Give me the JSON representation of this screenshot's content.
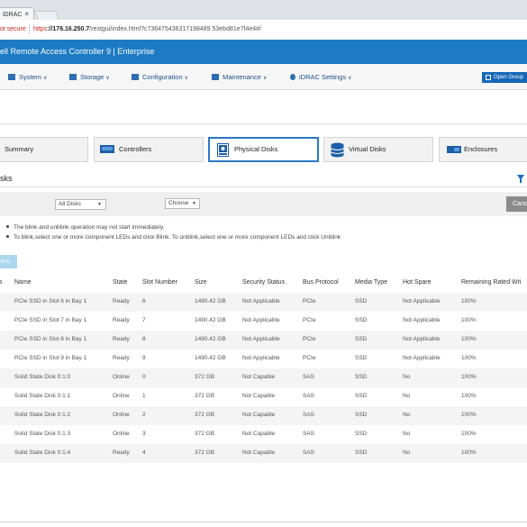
{
  "browser": {
    "tab_label": "iDRAC",
    "tab_close": "×",
    "security": "ot secure",
    "url_https": "https",
    "url_host": "://176.16.250.7",
    "url_path": "/restgui/index.html?c736475436317198489 53ebd81e7f4e4#/"
  },
  "header": {
    "title": "ell Remote Access Controller 9 | Enterprise",
    "open_group": "Open Group"
  },
  "nav": {
    "items": [
      {
        "label": "System"
      },
      {
        "label": "Storage"
      },
      {
        "label": "Configuration"
      },
      {
        "label": "Maintenance"
      },
      {
        "label": "iDRAC Settings"
      }
    ]
  },
  "component_tabs": [
    {
      "label": "Summary"
    },
    {
      "label": "Controllers"
    },
    {
      "label": "Physical Disks"
    },
    {
      "label": "Virtual Disks"
    },
    {
      "label": "Enclosures"
    }
  ],
  "section": {
    "title": "isks",
    "filter_select": "All Disks",
    "action_select": "Choose",
    "cancel_label": "Canc",
    "notes": [
      "The blink and unblink operation may not start immediately.",
      "To blink,select one or more component LEDs and click Blink. To unblink,select one or more component LEDs and click Unblink"
    ],
    "blink_label": "link"
  },
  "table": {
    "columns": [
      "s",
      "Name",
      "State",
      "Slot Number",
      "Size",
      "Security Status",
      "Bus Protocol",
      "Media Type",
      "Hot Spare",
      "Remaining Rated Wri"
    ],
    "rows": [
      [
        "PCIe SSD in Slot 6 in Bay 1",
        "Ready",
        "6",
        "1490.42 GB",
        "Not Applicable",
        "PCIe",
        "SSD",
        "Not Applicable",
        "100%"
      ],
      [
        "PCIe SSD in Slot 7 in Bay 1",
        "Ready",
        "7",
        "1490.42 GB",
        "Not Applicable",
        "PCIe",
        "SSD",
        "Not Applicable",
        "100%"
      ],
      [
        "PCIe SSD in Slot 8 in Bay 1",
        "Ready",
        "8",
        "1490.42 GB",
        "Not Applicable",
        "PCIe",
        "SSD",
        "Not Applicable",
        "100%"
      ],
      [
        "PCIe SSD in Slot 9 in Bay 1",
        "Ready",
        "9",
        "1490.42 GB",
        "Not Applicable",
        "PCIe",
        "SSD",
        "Not Applicable",
        "100%"
      ],
      [
        "Solid State Disk 0:1:0",
        "Online",
        "0",
        "372 GB",
        "Not Capable",
        "SAS",
        "SSD",
        "No",
        "100%"
      ],
      [
        "Solid State Disk 0:1:1",
        "Online",
        "1",
        "372 GB",
        "Not Capable",
        "SAS",
        "SSD",
        "No",
        "100%"
      ],
      [
        "Solid State Disk 0:1:2",
        "Online",
        "2",
        "372 GB",
        "Not Capable",
        "SAS",
        "SSD",
        "No",
        "100%"
      ],
      [
        "Solid State Disk 0:1:3",
        "Online",
        "3",
        "372 GB",
        "Not Capable",
        "SAS",
        "SSD",
        "No",
        "100%"
      ],
      [
        "Solid State Disk 0:1:4",
        "Ready",
        "4",
        "372 GB",
        "Not Capable",
        "SAS",
        "SSD",
        "No",
        "100%"
      ]
    ]
  },
  "colors": {
    "brand_bar": "#1c7bc3",
    "link": "#1c4c84",
    "insecure": "#cc1f1f"
  }
}
